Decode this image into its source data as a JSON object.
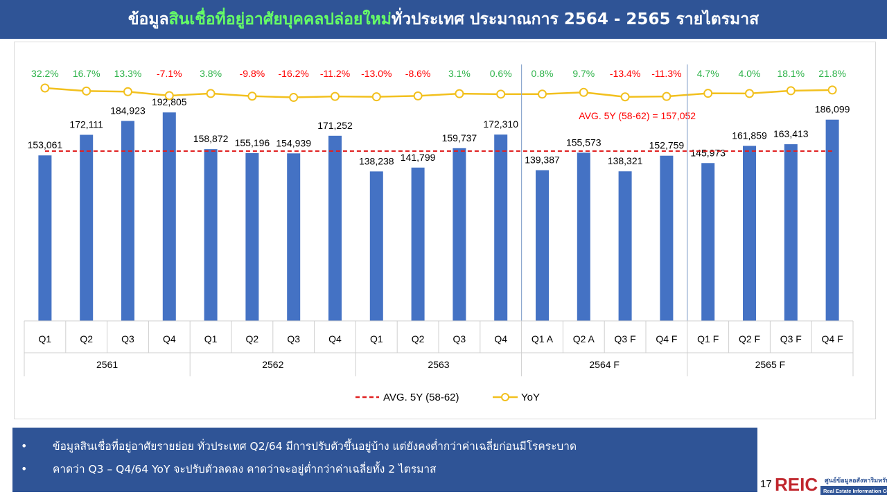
{
  "title": {
    "part1": "ข้อมูล",
    "part2": "สินเชื่อที่อยู่อาศัยบุคคลปล่อยใหม่",
    "part3": "ทั่วประเทศ ประมาณการ 2564 - 2565 รายไตรมาส"
  },
  "chart_data": {
    "type": "bar",
    "title": "",
    "groups": [
      {
        "label": "2561",
        "quarters": [
          "Q1",
          "Q2",
          "Q3",
          "Q4"
        ]
      },
      {
        "label": "2562",
        "quarters": [
          "Q1",
          "Q2",
          "Q3",
          "Q4"
        ]
      },
      {
        "label": "2563",
        "quarters": [
          "Q1",
          "Q2",
          "Q3",
          "Q4"
        ]
      },
      {
        "label": "2564 F",
        "quarters": [
          "Q1 A",
          "Q2 A",
          "Q3 F",
          "Q4 F"
        ]
      },
      {
        "label": "2565 F",
        "quarters": [
          "Q1 F",
          "Q2 F",
          "Q3 F",
          "Q4 F"
        ]
      }
    ],
    "categories": [
      "Q1",
      "Q2",
      "Q3",
      "Q4",
      "Q1",
      "Q2",
      "Q3",
      "Q4",
      "Q1",
      "Q2",
      "Q3",
      "Q4",
      "Q1 A",
      "Q2 A",
      "Q3 F",
      "Q4 F",
      "Q1 F",
      "Q2 F",
      "Q3 F",
      "Q4 F"
    ],
    "values": [
      153061,
      172111,
      184923,
      192805,
      158872,
      155196,
      154939,
      171252,
      138238,
      141799,
      159737,
      172310,
      139387,
      155573,
      138321,
      152759,
      145973,
      161859,
      163413,
      186099
    ],
    "value_labels": [
      "153,061",
      "172,111",
      "184,923",
      "192,805",
      "158,872",
      "155,196",
      "154,939",
      "171,252",
      "138,238",
      "141,799",
      "159,737",
      "172,310",
      "139,387",
      "155,573",
      "138,321",
      "152,759",
      "145,973",
      "161,859",
      "163,413",
      "186,099"
    ],
    "yoy": [
      32.2,
      16.7,
      13.3,
      -7.1,
      3.8,
      -9.8,
      -16.2,
      -11.2,
      -13.0,
      -8.6,
      3.1,
      0.6,
      0.8,
      9.7,
      -13.4,
      -11.3,
      4.7,
      4.0,
      18.1,
      21.8
    ],
    "yoy_labels": [
      "32.2%",
      "16.7%",
      "13.3%",
      "-7.1%",
      "3.8%",
      "-9.8%",
      "-16.2%",
      "-11.2%",
      "-13.0%",
      "-8.6%",
      "3.1%",
      "0.6%",
      "0.8%",
      "9.7%",
      "-13.4%",
      "-11.3%",
      "4.7%",
      "4.0%",
      "18.1%",
      "21.8%"
    ],
    "avg_value": 157052,
    "avg_annotation": "AVG. 5Y (58-62) =  157,052",
    "legend": [
      {
        "name": "AVG. 5Y (58-62)",
        "style": "dashed",
        "color": "#e02020"
      },
      {
        "name": "YoY",
        "style": "line-marker",
        "color": "#f2c01e"
      }
    ],
    "ylim": [
      0,
      200000
    ],
    "bar_color": "#4472c4",
    "positive_color": "#2eb34a",
    "negative_color": "#ff0000",
    "grid": false,
    "legend_position": "bottom"
  },
  "notes": [
    "ข้อมูลสินเชื่อที่อยู่อาศัยรายย่อย ทั่วประเทศ Q2/64 มีการปรับตัวขึ้นอยู่บ้าง แต่ยังคงต่ำกว่าค่าเฉลี่ยก่อนมีโรคระบาด",
    "คาดว่า Q3 – Q4/64 YoY จะปรับตัวลดลง คาดว่าจะอยู่ต่ำกว่าค่าเฉลี่ยทั้ง 2 ไตรมาส"
  ],
  "bullet": "•",
  "page_number": "17",
  "logo": {
    "mark": "REIC",
    "name_th": "ศูนย์ข้อมูลอสังหาริมทรัพย์",
    "name_en": "Real Estate Information Center"
  }
}
